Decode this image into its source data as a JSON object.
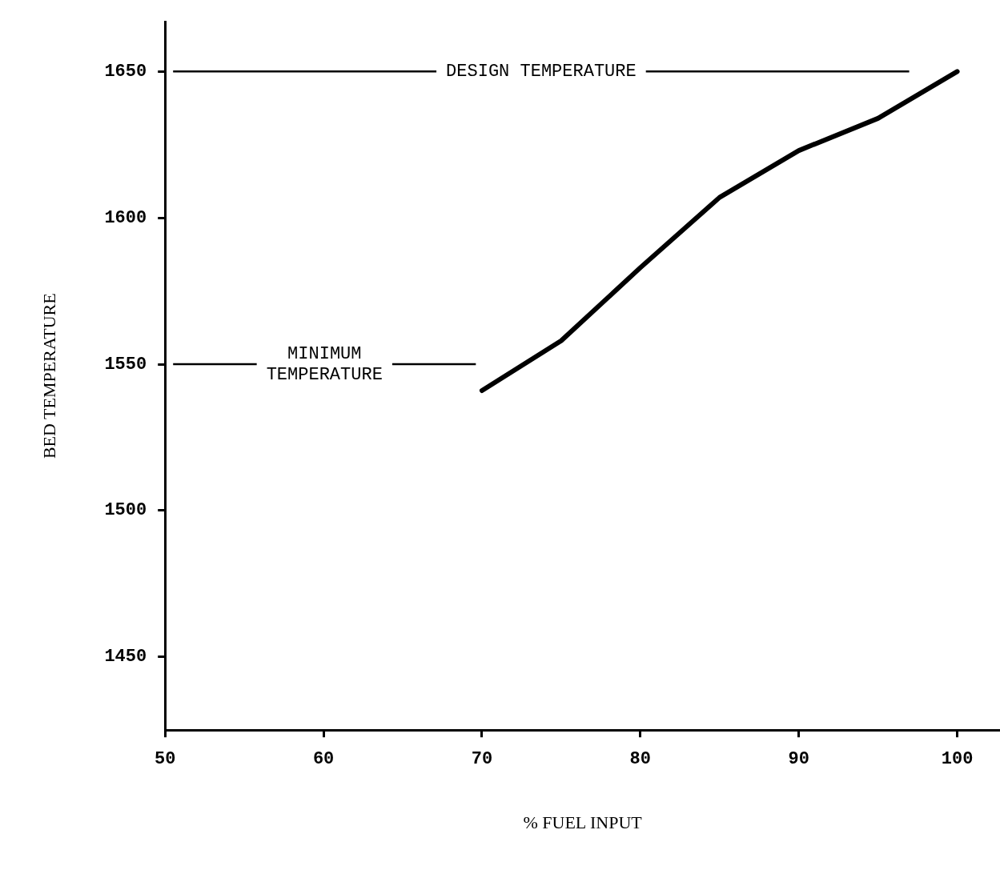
{
  "chart_data": {
    "type": "line",
    "xlabel": "% FUEL INPUT",
    "ylabel": "BED TEMPERATURE",
    "x": [
      70,
      75,
      80,
      85,
      90,
      95,
      100
    ],
    "series": [
      {
        "color": "#000000",
        "values": [
          1541,
          1558,
          1583,
          1607,
          1623,
          1634,
          1650
        ]
      }
    ],
    "xlim": [
      50,
      102.7
    ],
    "ylim": [
      1425,
      1667
    ],
    "xticks": [
      50,
      60,
      70,
      80,
      90,
      100
    ],
    "yticks": [
      1450,
      1500,
      1550,
      1600,
      1650
    ],
    "ref_lines": [
      {
        "axis": "y",
        "value": 1650,
        "label": "DESIGN TEMPERATURE"
      },
      {
        "axis": "y",
        "value": 1550,
        "label": "MINIMUM\nTEMPERATURE"
      }
    ],
    "grid": false,
    "legend": false,
    "marker": "none",
    "line_style": "solid"
  }
}
